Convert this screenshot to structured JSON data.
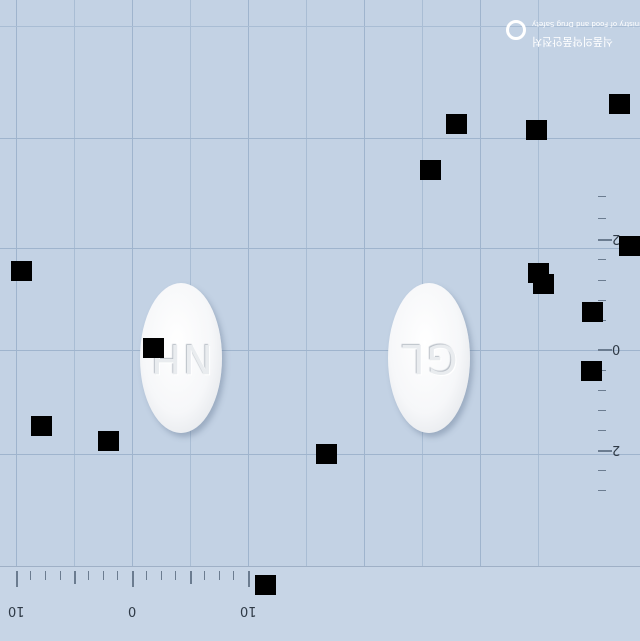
{
  "photo": {
    "pill_left_imprint": "NH",
    "pill_right_imprint": "GL",
    "logo_text_line1": "식품의약품안전처",
    "logo_text_line2": "Ministry of Food and Drug Safety"
  },
  "ruler_bottom": {
    "labels": [
      "10",
      "0",
      "10"
    ]
  },
  "ruler_right": {
    "labels": [
      "2",
      "0",
      "2"
    ]
  },
  "colors": {
    "background": "#c3d2e4",
    "grid": "#a9bdd4",
    "pill": "#f4f5f7",
    "mask": "#000000"
  }
}
